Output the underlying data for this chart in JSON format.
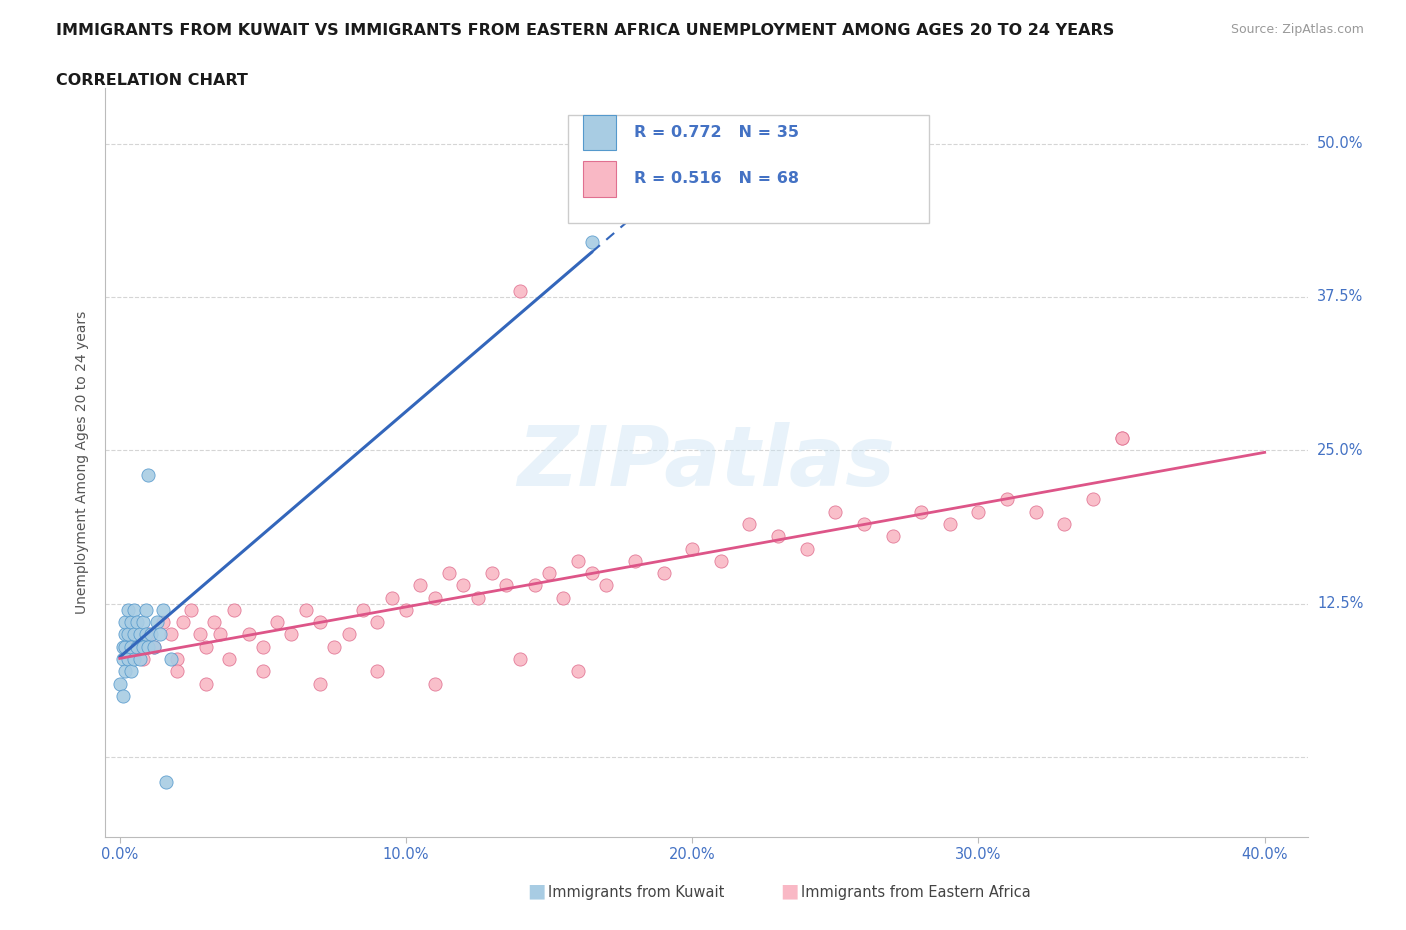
{
  "title_line1": "IMMIGRANTS FROM KUWAIT VS IMMIGRANTS FROM EASTERN AFRICA UNEMPLOYMENT AMONG AGES 20 TO 24 YEARS",
  "title_line2": "CORRELATION CHART",
  "source": "Source: ZipAtlas.com",
  "ylabel": "Unemployment Among Ages 20 to 24 years",
  "r_kuwait": 0.772,
  "n_kuwait": 35,
  "r_eastern": 0.516,
  "n_eastern": 68,
  "color_kuwait_fill": "#a8cce3",
  "color_kuwait_edge": "#5599cc",
  "color_kuwait_line": "#3366bb",
  "color_eastern_fill": "#f9b8c5",
  "color_eastern_edge": "#e07090",
  "color_eastern_line": "#dd5588",
  "background": "#ffffff",
  "title_color": "#1a1a1a",
  "axis_color": "#4472c4",
  "grid_color": "#d5d5d5",
  "kuwait_x": [
    0.0,
    0.001,
    0.001,
    0.001,
    0.002,
    0.002,
    0.002,
    0.002,
    0.003,
    0.003,
    0.003,
    0.004,
    0.004,
    0.004,
    0.005,
    0.005,
    0.005,
    0.006,
    0.006,
    0.007,
    0.007,
    0.008,
    0.008,
    0.009,
    0.009,
    0.01,
    0.01,
    0.011,
    0.012,
    0.013,
    0.014,
    0.015,
    0.016,
    0.018,
    0.165
  ],
  "kuwait_y": [
    0.06,
    0.05,
    0.08,
    0.09,
    0.07,
    0.09,
    0.1,
    0.11,
    0.08,
    0.1,
    0.12,
    0.07,
    0.09,
    0.11,
    0.08,
    0.1,
    0.12,
    0.09,
    0.11,
    0.08,
    0.1,
    0.09,
    0.11,
    0.1,
    0.12,
    0.09,
    0.23,
    0.1,
    0.09,
    0.11,
    0.1,
    0.12,
    -0.02,
    0.08,
    0.42
  ],
  "eastern_x": [
    0.005,
    0.008,
    0.01,
    0.012,
    0.015,
    0.018,
    0.02,
    0.022,
    0.025,
    0.028,
    0.03,
    0.033,
    0.035,
    0.038,
    0.04,
    0.045,
    0.05,
    0.055,
    0.06,
    0.065,
    0.07,
    0.075,
    0.08,
    0.085,
    0.09,
    0.095,
    0.1,
    0.105,
    0.11,
    0.115,
    0.12,
    0.125,
    0.13,
    0.135,
    0.14,
    0.145,
    0.15,
    0.155,
    0.16,
    0.165,
    0.17,
    0.18,
    0.19,
    0.2,
    0.21,
    0.22,
    0.23,
    0.24,
    0.25,
    0.26,
    0.27,
    0.28,
    0.29,
    0.3,
    0.31,
    0.32,
    0.33,
    0.34,
    0.35,
    0.02,
    0.03,
    0.05,
    0.07,
    0.09,
    0.11,
    0.14,
    0.16,
    0.35
  ],
  "eastern_y": [
    0.09,
    0.08,
    0.1,
    0.09,
    0.11,
    0.1,
    0.08,
    0.11,
    0.12,
    0.1,
    0.09,
    0.11,
    0.1,
    0.08,
    0.12,
    0.1,
    0.09,
    0.11,
    0.1,
    0.12,
    0.11,
    0.09,
    0.1,
    0.12,
    0.11,
    0.13,
    0.12,
    0.14,
    0.13,
    0.15,
    0.14,
    0.13,
    0.15,
    0.14,
    0.38,
    0.14,
    0.15,
    0.13,
    0.16,
    0.15,
    0.14,
    0.16,
    0.15,
    0.17,
    0.16,
    0.19,
    0.18,
    0.17,
    0.2,
    0.19,
    0.18,
    0.2,
    0.19,
    0.2,
    0.21,
    0.2,
    0.19,
    0.21,
    0.26,
    0.07,
    0.06,
    0.07,
    0.06,
    0.07,
    0.06,
    0.08,
    0.07,
    0.26
  ],
  "xlim": [
    -0.005,
    0.415
  ],
  "ylim": [
    -0.065,
    0.545
  ],
  "xticks": [
    0.0,
    0.1,
    0.2,
    0.3,
    0.4
  ],
  "xtick_labels": [
    "0.0%",
    "10.0%",
    "20.0%",
    "30.0%",
    "40.0%"
  ],
  "ytick_vals": [
    0.0,
    0.125,
    0.25,
    0.375,
    0.5
  ],
  "ytick_right": [
    "12.5%",
    "25.0%",
    "37.5%",
    "50.0%"
  ]
}
